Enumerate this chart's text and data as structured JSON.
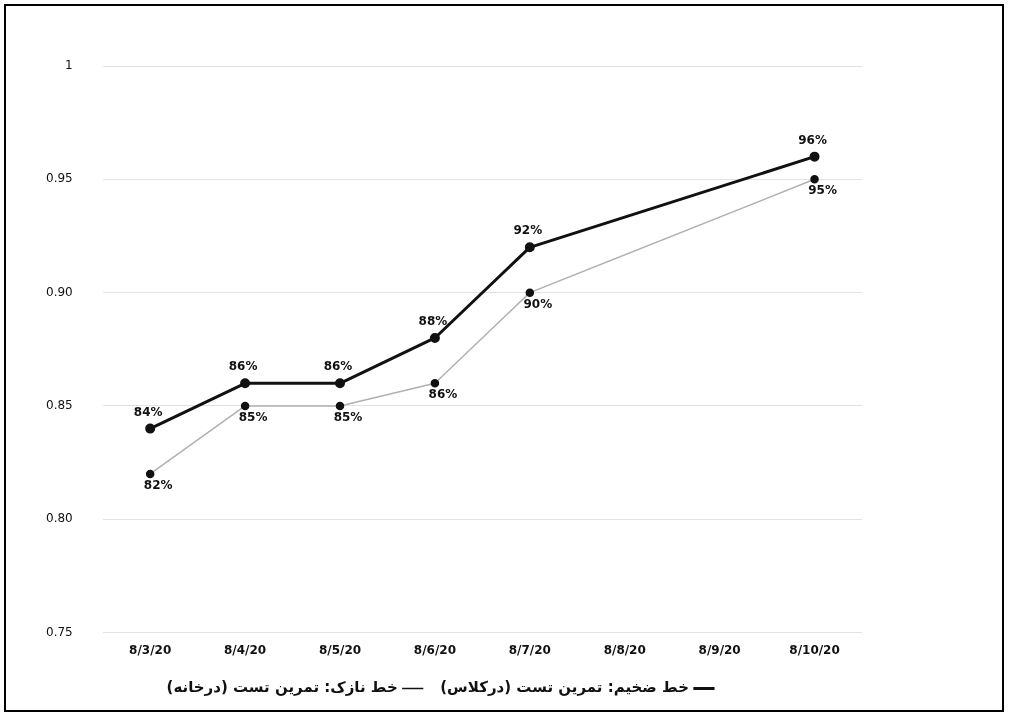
{
  "chart_data": {
    "type": "line",
    "categories": [
      "8/3/20",
      "8/4/20",
      "8/5/20",
      "8/6/20",
      "8/7/20",
      "8/8/20",
      "8/9/20",
      "8/10/20"
    ],
    "series": [
      {
        "name": "خط ضخیم: تمرین تست (درکلاس)",
        "color": "#111111",
        "values": [
          0.84,
          0.86,
          0.86,
          0.88,
          0.92,
          null,
          null,
          0.96
        ],
        "value_labels": [
          "84%",
          "86%",
          "86%",
          "88%",
          "92%",
          null,
          null,
          "96%"
        ]
      },
      {
        "name": "خط نازک: تمرین تست (درخانه)",
        "color": "#b0b0b0",
        "values": [
          0.82,
          0.85,
          0.85,
          0.86,
          0.9,
          null,
          null,
          0.95
        ],
        "value_labels": [
          "82%",
          "85%",
          "85%",
          "86%",
          "90%",
          null,
          null,
          "95%"
        ]
      }
    ],
    "ylim": [
      0.75,
      1
    ],
    "yticks": [
      0.75,
      {
        "value": 0.8,
        "label": "0.80"
      },
      0.85,
      {
        "value": 0.9,
        "label": "0.90"
      },
      0.95,
      {
        "value": 1,
        "label": "1"
      }
    ],
    "grid": "y",
    "legend": "bottom",
    "marker": "circle",
    "line_style": "solid"
  }
}
